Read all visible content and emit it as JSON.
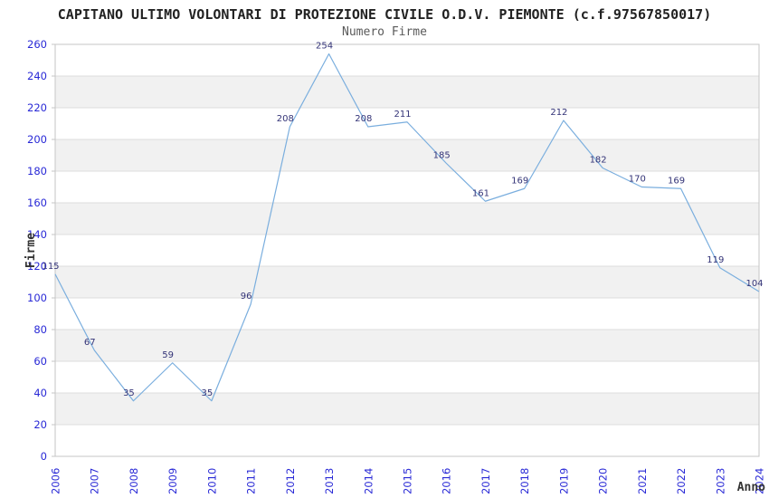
{
  "chart_data": {
    "type": "line",
    "title": "CAPITANO ULTIMO VOLONTARI DI PROTEZIONE CIVILE O.D.V. PIEMONTE (c.f.97567850017)",
    "subtitle": "Numero Firme",
    "xlabel": "Anno",
    "ylabel": "Firme",
    "categories": [
      "2006",
      "2007",
      "2008",
      "2009",
      "2010",
      "2011",
      "2012",
      "2013",
      "2014",
      "2015",
      "2016",
      "2017",
      "2018",
      "2019",
      "2020",
      "2021",
      "2022",
      "2023",
      "2024"
    ],
    "values": [
      115,
      67,
      35,
      59,
      35,
      96,
      208,
      254,
      208,
      211,
      185,
      161,
      169,
      212,
      182,
      170,
      169,
      119,
      104
    ],
    "ylim": [
      0,
      260
    ],
    "ytick_step": 20,
    "grid": true,
    "legend_position": "none",
    "data_labels_shown": true,
    "colors": {
      "line": "#7aaede",
      "tick_labels": "#2929d6",
      "data_labels": "#333377",
      "stripe": "#f1f1f1",
      "gridline": "#dddddd",
      "border": "#c6c6c6",
      "title": "#222222",
      "subtitle": "#5a5a5a",
      "axis_titles": "#333333"
    }
  }
}
